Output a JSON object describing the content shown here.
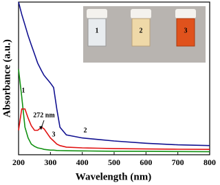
{
  "chart_data": {
    "type": "line",
    "xlabel": "Wavelength (nm)",
    "ylabel": "Absorbance (a.u.)",
    "annotations": [
      "272 nm"
    ],
    "x": [
      200,
      210,
      220,
      230,
      240,
      250,
      260,
      272,
      280,
      300,
      310,
      320,
      330,
      350,
      400,
      450,
      500,
      600,
      700,
      800
    ],
    "xlim": [
      200,
      800
    ],
    "xticks": [
      200,
      300,
      400,
      500,
      600,
      700,
      800
    ],
    "ylim": [
      0,
      100
    ],
    "series": [
      {
        "name": "1",
        "color": "#109010",
        "values": [
          56,
          38,
          18,
          11,
          7,
          5.5,
          4.5,
          4,
          3.5,
          3,
          3,
          2.8,
          2.7,
          2.6,
          2.5,
          2.4,
          2.3,
          2.2,
          2.1,
          2
        ]
      },
      {
        "name": "2",
        "color": "#101090",
        "values": [
          100,
          92,
          85,
          78,
          72,
          66,
          60,
          55,
          52,
          47,
          44,
          30,
          18,
          13,
          11,
          10,
          9,
          7.5,
          6.5,
          6
        ]
      },
      {
        "name": "3",
        "color": "#e01010",
        "values": [
          16,
          30,
          30,
          24,
          19,
          16,
          16,
          18,
          17,
          11,
          9,
          7,
          6,
          5,
          4.5,
          4.3,
          4,
          3.8,
          3.6,
          3.5
        ]
      }
    ]
  }
}
